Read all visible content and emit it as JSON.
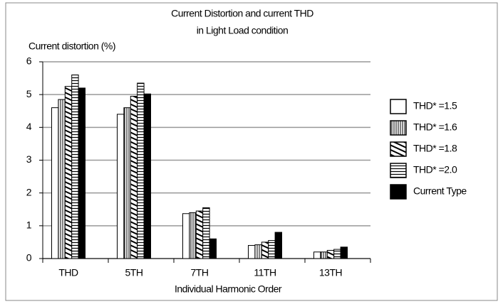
{
  "chart_data": {
    "type": "bar",
    "title": [
      "Current Distortion and current THD",
      "in Light Load condition"
    ],
    "y_label": "Current distortion (%)",
    "x_label": "Individual  Harmonic Order",
    "categories": [
      "THD",
      "5TH",
      "7TH",
      "11TH",
      "13TH"
    ],
    "series": [
      {
        "name": "THD* =1.5",
        "color": "#ffffff",
        "pattern": "none",
        "values": [
          4.6,
          4.4,
          1.37,
          0.4,
          0.2
        ]
      },
      {
        "name": "THD* =1.6",
        "color": "#ffffff",
        "pattern": "vertical",
        "values": [
          4.85,
          4.6,
          1.4,
          0.42,
          0.2
        ]
      },
      {
        "name": "THD* =1.8",
        "color": "#ffffff",
        "pattern": "diagonal",
        "values": [
          5.25,
          4.95,
          1.45,
          0.5,
          0.25
        ]
      },
      {
        "name": "THD* =2.0",
        "color": "#ffffff",
        "pattern": "horizontal",
        "values": [
          5.6,
          5.35,
          1.55,
          0.55,
          0.28
        ]
      },
      {
        "name": "Current Type",
        "color": "#000000",
        "pattern": "none",
        "values": [
          5.2,
          5.02,
          0.6,
          0.8,
          0.35
        ]
      }
    ],
    "ylim": [
      0,
      6
    ],
    "yticks": [
      0,
      1,
      2,
      3,
      4,
      5,
      6
    ],
    "grid": true,
    "legend": "right"
  }
}
